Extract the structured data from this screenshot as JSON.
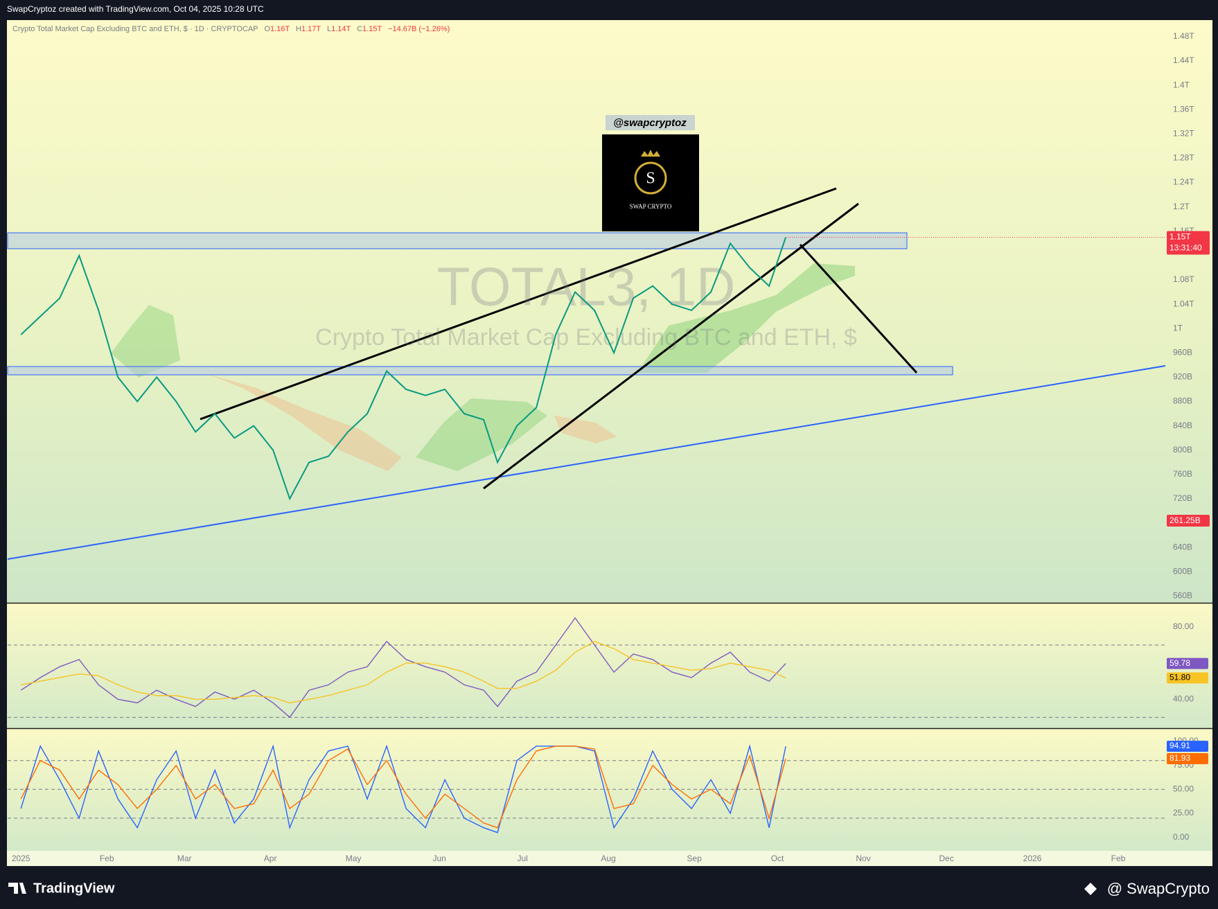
{
  "header": {
    "credit": "SwapCryptoz created with TradingView.com, Oct 04, 2025 10:28 UTC"
  },
  "legend": {
    "symbol": "Crypto Total Market Cap Excluding BTC and ETH, $ · 1D · CRYPTOCAP",
    "ohlc": [
      {
        "key": "O",
        "value": "1.16T"
      },
      {
        "key": "H",
        "value": "1.17T"
      },
      {
        "key": "L",
        "value": "1.14T"
      },
      {
        "key": "C",
        "value": "1.15T"
      }
    ],
    "change": "−14.67B (−1.26%)"
  },
  "watermark": {
    "ticker": "TOTAL3, 1D",
    "name": "Crypto Total Market Cap Excluding BTC and ETH, $"
  },
  "logo": {
    "handle": "@swapcryptoz",
    "letter": "S",
    "brand": "SWAP CRYPTO"
  },
  "footer": {
    "brand": "TradingView",
    "author": "@ SwapCrypto"
  },
  "chart_data": [
    {
      "type": "line",
      "xlim": [
        -4.8,
        413
      ],
      "xticks": [
        {
          "value": 0,
          "label": "2025"
        },
        {
          "value": 31,
          "label": "Feb"
        },
        {
          "value": 59,
          "label": "Mar"
        },
        {
          "value": 90,
          "label": "Apr"
        },
        {
          "value": 120,
          "label": "May"
        },
        {
          "value": 151,
          "label": "Jun"
        },
        {
          "value": 181,
          "label": "Jul"
        },
        {
          "value": 212,
          "label": "Aug"
        },
        {
          "value": 243,
          "label": "Sep"
        },
        {
          "value": 273,
          "label": "Oct"
        },
        {
          "value": 304,
          "label": "Nov"
        },
        {
          "value": 334,
          "label": "Dec"
        },
        {
          "value": 365,
          "label": "2026"
        },
        {
          "value": 396,
          "label": "Feb"
        }
      ],
      "ylim": [
        549,
        1505
      ],
      "yticks": [
        {
          "value": 1480,
          "label": "1.48T"
        },
        {
          "value": 1440,
          "label": "1.44T"
        },
        {
          "value": 1400,
          "label": "1.4T"
        },
        {
          "value": 1360,
          "label": "1.36T"
        },
        {
          "value": 1320,
          "label": "1.32T"
        },
        {
          "value": 1280,
          "label": "1.28T"
        },
        {
          "value": 1240,
          "label": "1.24T"
        },
        {
          "value": 1200,
          "label": "1.2T"
        },
        {
          "value": 1160,
          "label": "1.16T"
        },
        {
          "value": 1080,
          "label": "1.08T"
        },
        {
          "value": 1040,
          "label": "1.04T"
        },
        {
          "value": 1000,
          "label": "1T"
        },
        {
          "value": 960,
          "label": "960B"
        },
        {
          "value": 920,
          "label": "920B"
        },
        {
          "value": 880,
          "label": "880B"
        },
        {
          "value": 840,
          "label": "840B"
        },
        {
          "value": 800,
          "label": "800B"
        },
        {
          "value": 760,
          "label": "760B"
        },
        {
          "value": 720,
          "label": "720B"
        },
        {
          "value": 640,
          "label": "640B"
        },
        {
          "value": 600,
          "label": "600B"
        },
        {
          "value": 560,
          "label": "560B"
        }
      ],
      "grid": false,
      "x": [
        0,
        7,
        14,
        21,
        28,
        35,
        42,
        49,
        56,
        63,
        70,
        77,
        84,
        91,
        97,
        104,
        111,
        118,
        125,
        132,
        139,
        146,
        153,
        160,
        167,
        172,
        179,
        186,
        193,
        200,
        207,
        214,
        221,
        228,
        235,
        242,
        249,
        256,
        263,
        270,
        276
      ],
      "series": [
        {
          "color": "#089981",
          "values": [
            990,
            1020,
            1050,
            1120,
            1030,
            920,
            880,
            920,
            880,
            830,
            860,
            820,
            840,
            800,
            720,
            780,
            790,
            830,
            860,
            930,
            900,
            890,
            900,
            860,
            850,
            780,
            840,
            870,
            990,
            1060,
            1030,
            960,
            1050,
            1070,
            1040,
            1030,
            1060,
            1140,
            1100,
            1070,
            1150
          ]
        }
      ],
      "price_tag": "1.15T",
      "countdown": "13:31:40",
      "volume_tag": "261.25B"
    },
    {
      "type": "line",
      "xlim": [
        -4.8,
        413
      ],
      "ylim": [
        24,
        93
      ],
      "yticks": [
        {
          "value": 80,
          "label": "80.00"
        },
        {
          "value": 40,
          "label": "40.00"
        }
      ],
      "bands": [
        70,
        30
      ],
      "x": [
        0,
        7,
        14,
        21,
        28,
        35,
        42,
        49,
        56,
        63,
        70,
        77,
        84,
        91,
        97,
        104,
        111,
        118,
        125,
        132,
        139,
        146,
        153,
        160,
        167,
        172,
        179,
        186,
        193,
        200,
        207,
        214,
        221,
        228,
        235,
        242,
        249,
        256,
        263,
        270,
        276
      ],
      "series": [
        {
          "color": "#7e57c2",
          "tag": "59.78",
          "values": [
            45,
            52,
            58,
            62,
            48,
            40,
            38,
            45,
            40,
            36,
            44,
            40,
            45,
            38,
            30,
            45,
            48,
            55,
            58,
            72,
            62,
            58,
            55,
            48,
            45,
            36,
            50,
            55,
            70,
            85,
            70,
            55,
            65,
            62,
            55,
            52,
            60,
            66,
            55,
            50,
            59.78
          ]
        },
        {
          "color": "#f7c325",
          "tag": "51.80",
          "values": [
            48,
            50,
            52,
            54,
            53,
            48,
            44,
            42,
            42,
            40,
            40,
            41,
            42,
            41,
            38,
            40,
            42,
            45,
            48,
            55,
            60,
            60,
            58,
            55,
            50,
            46,
            46,
            50,
            56,
            66,
            72,
            68,
            62,
            60,
            58,
            56,
            57,
            60,
            58,
            56,
            51.8
          ]
        }
      ]
    },
    {
      "type": "line",
      "xlim": [
        -4.8,
        413
      ],
      "ylim": [
        -14,
        113
      ],
      "yticks": [
        {
          "value": 100,
          "label": "100.00"
        },
        {
          "value": 75,
          "label": "75.00"
        },
        {
          "value": 50,
          "label": "50.00"
        },
        {
          "value": 25,
          "label": "25.00"
        },
        {
          "value": 0,
          "label": "0.00"
        }
      ],
      "bands": [
        80,
        50,
        20
      ],
      "x": [
        0,
        7,
        14,
        21,
        28,
        35,
        42,
        49,
        56,
        63,
        70,
        77,
        84,
        91,
        97,
        104,
        111,
        118,
        125,
        132,
        139,
        146,
        153,
        160,
        167,
        172,
        179,
        186,
        193,
        200,
        207,
        214,
        221,
        228,
        235,
        242,
        249,
        256,
        263,
        270,
        276
      ],
      "series": [
        {
          "color": "#2962ff",
          "tag": "94.91",
          "values": [
            30,
            95,
            60,
            20,
            90,
            40,
            10,
            60,
            90,
            20,
            70,
            15,
            40,
            95,
            10,
            60,
            90,
            95,
            40,
            95,
            30,
            10,
            60,
            20,
            10,
            5,
            80,
            95,
            95,
            95,
            90,
            10,
            40,
            90,
            50,
            30,
            60,
            25,
            95,
            10,
            94.91
          ]
        },
        {
          "color": "#ff6d00",
          "tag": "81.93",
          "values": [
            40,
            80,
            70,
            40,
            70,
            55,
            30,
            50,
            75,
            40,
            55,
            30,
            35,
            70,
            30,
            45,
            80,
            92,
            55,
            80,
            45,
            20,
            45,
            30,
            15,
            10,
            60,
            90,
            95,
            95,
            92,
            30,
            35,
            75,
            55,
            40,
            50,
            35,
            85,
            20,
            81.93
          ]
        }
      ]
    }
  ]
}
